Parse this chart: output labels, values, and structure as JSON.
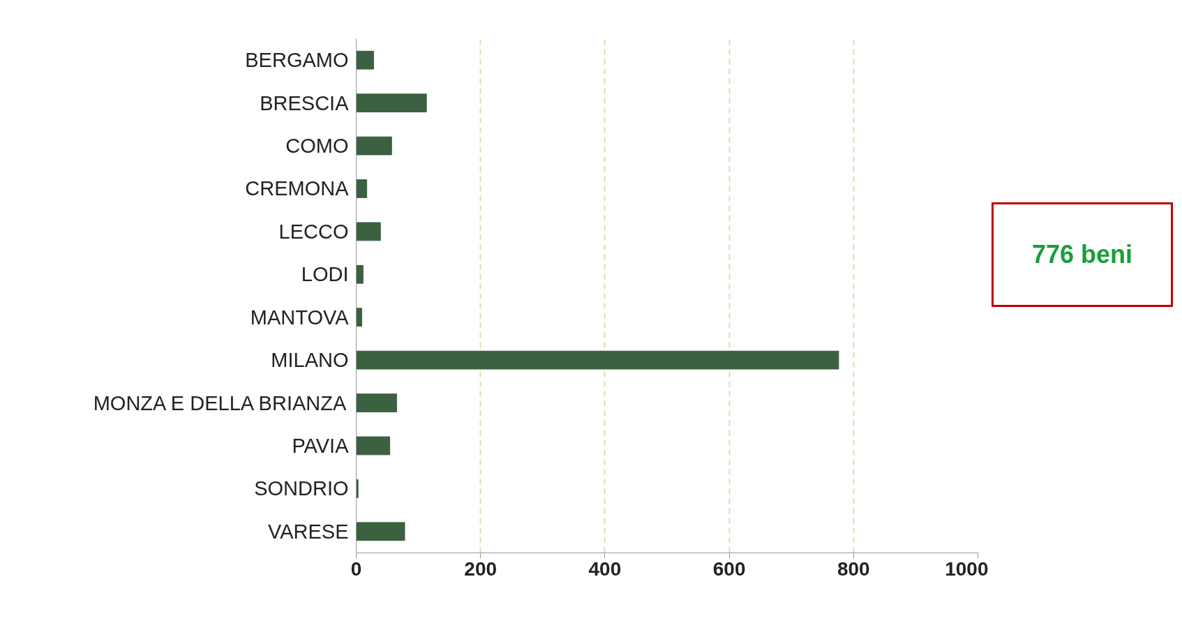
{
  "chart_data": {
    "type": "bar",
    "orientation": "horizontal",
    "categories": [
      "BERGAMO",
      "BRESCIA",
      "COMO",
      "CREMONA",
      "LECCO",
      "LODI",
      "MANTOVA",
      "MILANO",
      "MONZA E DELLA BRIANZA",
      "PAVIA",
      "SONDRIO",
      "VARESE"
    ],
    "values": [
      28,
      113,
      57,
      17,
      39,
      11,
      9,
      776,
      65,
      54,
      3,
      78
    ],
    "color": "#3b6140",
    "xlim": [
      0,
      1000
    ],
    "xticks": [
      0,
      200,
      400,
      600,
      800,
      1000
    ],
    "grid": "x",
    "annotations": [
      "776 beni"
    ]
  }
}
